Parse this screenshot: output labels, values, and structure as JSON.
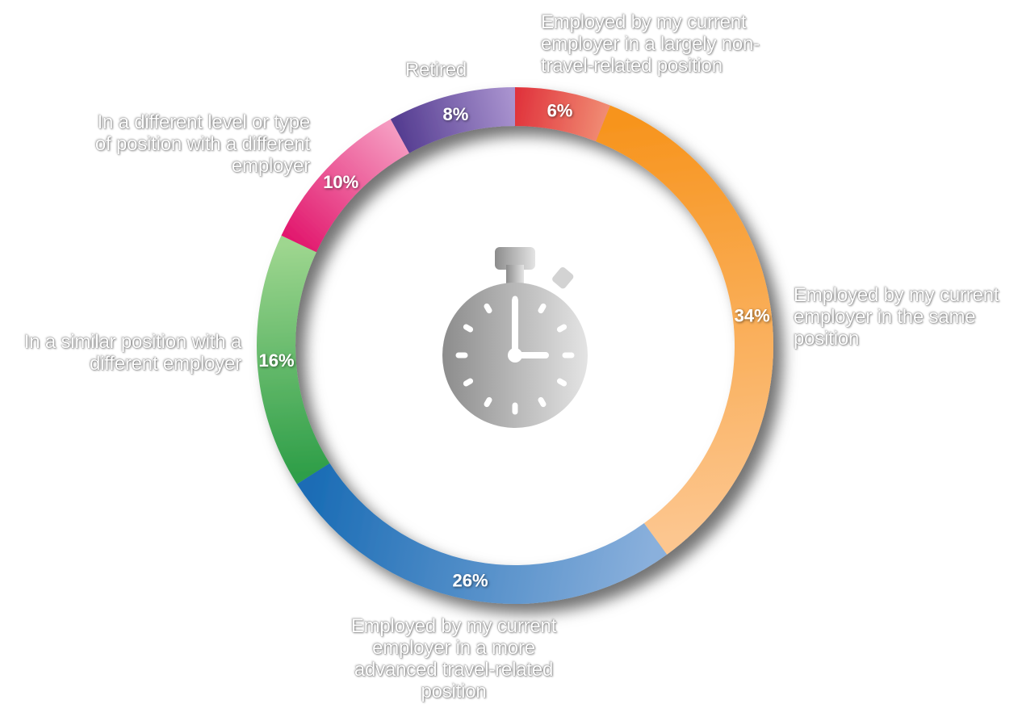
{
  "chart_data": {
    "type": "pie",
    "variant": "donut",
    "title": "",
    "legend": "none",
    "center_icon": "stopwatch-icon",
    "value_suffix": "%",
    "slices": [
      {
        "label": "Employed by my current employer in a largely non-travel-related position",
        "value": 6,
        "display": "6%",
        "colors": [
          "#e0333c",
          "#f08a72"
        ]
      },
      {
        "label": "Employed by my current employer in the same position",
        "value": 34,
        "display": "34%",
        "colors": [
          "#f7941d",
          "#fcc68f"
        ]
      },
      {
        "label": "Employed by my current employer in a more advanced travel-related position",
        "value": 26,
        "display": "26%",
        "colors": [
          "#8ab0dc",
          "#1a6cb5"
        ]
      },
      {
        "label": "In a similar position with a different employer",
        "value": 16,
        "display": "16%",
        "colors": [
          "#2e9e48",
          "#9ed68f"
        ]
      },
      {
        "label": "In a different level or type of position with a different employer",
        "value": 10,
        "display": "10%",
        "colors": [
          "#e2196e",
          "#f59ac0"
        ]
      },
      {
        "label": "Retired",
        "value": 8,
        "display": "8%",
        "colors": [
          "#553d91",
          "#a993cf"
        ]
      }
    ]
  }
}
